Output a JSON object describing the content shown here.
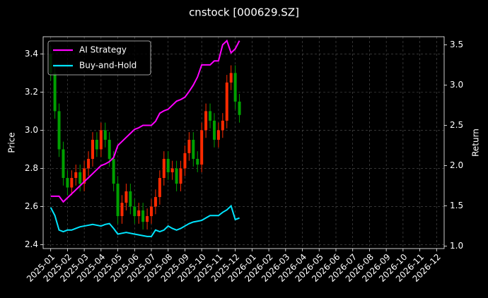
{
  "chart_data": {
    "type": "candlestick",
    "title": "cnstock [000629.SZ]",
    "ylabel": "Price",
    "y2label": "Return",
    "x": [
      0,
      0.25,
      0.5,
      0.75,
      1,
      1.25,
      1.5,
      1.75,
      2,
      2.25,
      2.5,
      2.75,
      3,
      3.25,
      3.5,
      3.75,
      4,
      4.25,
      4.5,
      4.75,
      5,
      5.25,
      5.5,
      5.75,
      6,
      6.25,
      6.5,
      6.75,
      7,
      7.25,
      7.5,
      7.75,
      8,
      8.25,
      8.5,
      8.75,
      9,
      9.25,
      9.5,
      9.75,
      10,
      10.25,
      10.5,
      10.75,
      11,
      11.25
    ],
    "open": [
      3.4,
      3.3,
      3.1,
      2.9,
      2.75,
      2.7,
      2.75,
      2.78,
      2.72,
      2.8,
      2.85,
      2.95,
      2.9,
      3.0,
      2.95,
      2.85,
      2.72,
      2.55,
      2.62,
      2.68,
      2.6,
      2.55,
      2.58,
      2.52,
      2.55,
      2.6,
      2.65,
      2.75,
      2.85,
      2.78,
      2.8,
      2.72,
      2.8,
      2.88,
      2.95,
      2.85,
      2.82,
      3.0,
      3.1,
      3.05,
      2.95,
      3.0,
      3.05,
      3.25,
      3.3,
      3.15
    ],
    "high": [
      3.44,
      3.34,
      3.14,
      2.94,
      2.79,
      2.79,
      2.82,
      2.82,
      2.84,
      2.89,
      2.99,
      2.99,
      3.04,
      3.04,
      2.99,
      2.89,
      2.76,
      2.66,
      2.72,
      2.72,
      2.64,
      2.62,
      2.62,
      2.59,
      2.64,
      2.69,
      2.79,
      2.89,
      2.89,
      2.84,
      2.84,
      2.84,
      2.92,
      2.99,
      2.99,
      2.89,
      3.04,
      3.14,
      3.14,
      3.09,
      3.04,
      3.09,
      3.29,
      3.34,
      3.34,
      3.19
    ],
    "low": [
      3.26,
      3.06,
      2.86,
      2.71,
      2.66,
      2.66,
      2.71,
      2.68,
      2.68,
      2.76,
      2.81,
      2.86,
      2.86,
      2.91,
      2.81,
      2.68,
      2.51,
      2.51,
      2.58,
      2.56,
      2.51,
      2.51,
      2.48,
      2.48,
      2.51,
      2.56,
      2.61,
      2.71,
      2.74,
      2.74,
      2.68,
      2.68,
      2.76,
      2.84,
      2.81,
      2.78,
      2.78,
      2.96,
      3.01,
      2.91,
      2.91,
      2.96,
      3.01,
      3.21,
      3.11,
      3.04
    ],
    "close": [
      3.3,
      3.1,
      2.9,
      2.75,
      2.7,
      2.75,
      2.78,
      2.72,
      2.8,
      2.85,
      2.95,
      2.9,
      3.0,
      2.95,
      2.85,
      2.72,
      2.55,
      2.62,
      2.68,
      2.6,
      2.55,
      2.58,
      2.52,
      2.55,
      2.6,
      2.65,
      2.75,
      2.85,
      2.78,
      2.8,
      2.72,
      2.8,
      2.88,
      2.95,
      2.85,
      2.82,
      3.0,
      3.1,
      3.05,
      2.95,
      3.0,
      3.05,
      3.25,
      3.3,
      3.15,
      3.08
    ],
    "up_color": "#ff2a00",
    "down_color": "#00a000",
    "series": [
      {
        "name": "AI Strategy",
        "color": "#ff00ff",
        "axis": "y2",
        "values": [
          1.62,
          1.62,
          1.62,
          1.55,
          1.6,
          1.65,
          1.7,
          1.75,
          1.8,
          1.85,
          1.9,
          1.95,
          2.0,
          2.02,
          2.05,
          2.1,
          2.25,
          2.3,
          2.35,
          2.4,
          2.45,
          2.47,
          2.5,
          2.5,
          2.5,
          2.55,
          2.65,
          2.68,
          2.7,
          2.75,
          2.8,
          2.82,
          2.85,
          2.92,
          3.0,
          3.1,
          3.25,
          3.25,
          3.25,
          3.3,
          3.3,
          3.5,
          3.55,
          3.4,
          3.45,
          3.55
        ]
      },
      {
        "name": "Buy-and-Hold",
        "color": "#00e5ff",
        "axis": "y2",
        "values": [
          1.48,
          1.38,
          1.2,
          1.18,
          1.2,
          1.2,
          1.22,
          1.24,
          1.25,
          1.26,
          1.27,
          1.26,
          1.25,
          1.27,
          1.28,
          1.22,
          1.15,
          1.16,
          1.17,
          1.16,
          1.15,
          1.14,
          1.13,
          1.12,
          1.12,
          1.2,
          1.18,
          1.2,
          1.25,
          1.22,
          1.2,
          1.22,
          1.25,
          1.28,
          1.3,
          1.31,
          1.32,
          1.35,
          1.38,
          1.38,
          1.38,
          1.42,
          1.45,
          1.5,
          1.33,
          1.35
        ]
      }
    ],
    "xlim": [
      -0.45,
      23.45
    ],
    "xticks": [
      {
        "value": 0,
        "label": "2025-01"
      },
      {
        "value": 1,
        "label": "2025-02"
      },
      {
        "value": 2,
        "label": "2025-03"
      },
      {
        "value": 3,
        "label": "2025-04"
      },
      {
        "value": 4,
        "label": "2025-05"
      },
      {
        "value": 5,
        "label": "2025-06"
      },
      {
        "value": 6,
        "label": "2025-07"
      },
      {
        "value": 7,
        "label": "2025-08"
      },
      {
        "value": 8,
        "label": "2025-09"
      },
      {
        "value": 9,
        "label": "2025-10"
      },
      {
        "value": 10,
        "label": "2025-11"
      },
      {
        "value": 11,
        "label": "2025-12"
      },
      {
        "value": 12,
        "label": "2026-01"
      },
      {
        "value": 13,
        "label": "2026-02"
      },
      {
        "value": 14,
        "label": "2026-03"
      },
      {
        "value": 15,
        "label": "2026-04"
      },
      {
        "value": 16,
        "label": "2026-05"
      },
      {
        "value": 17,
        "label": "2026-06"
      },
      {
        "value": 18,
        "label": "2026-07"
      },
      {
        "value": 19,
        "label": "2026-08"
      },
      {
        "value": 20,
        "label": "2026-09"
      },
      {
        "value": 21,
        "label": "2026-10"
      },
      {
        "value": 22,
        "label": "2026-11"
      },
      {
        "value": 23,
        "label": "2026-12"
      }
    ],
    "ylim": [
      2.38,
      3.49
    ],
    "yticks": [
      2.4,
      2.6,
      2.8,
      {
        "value": 3,
        "label": "3.0"
      },
      3.2,
      3.4
    ],
    "y2lim": [
      0.97,
      3.6
    ],
    "y2ticks": [
      {
        "value": 1,
        "label": "1.0"
      },
      1.5,
      {
        "value": 2,
        "label": "2.0"
      },
      2.5,
      {
        "value": 3,
        "label": "3.0"
      },
      3.5
    ],
    "grid": true,
    "legend": "upper left"
  }
}
